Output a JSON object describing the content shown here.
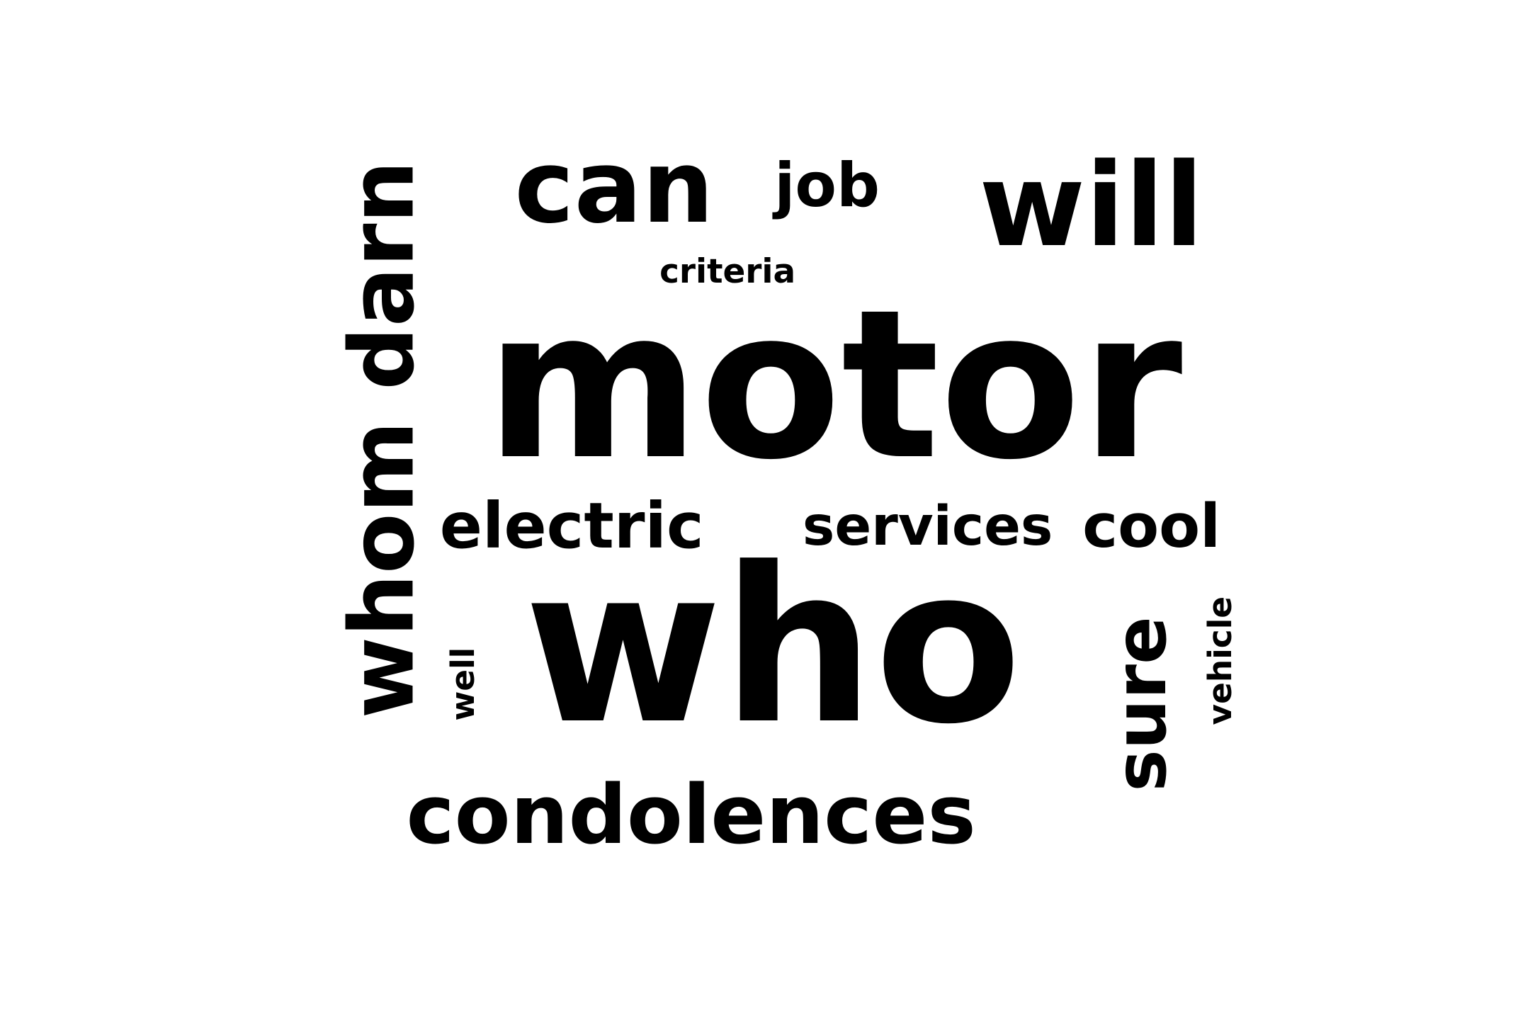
{
  "word_cloud": {
    "text_color": "#000000",
    "background_color": "#ffffff",
    "words": [
      {
        "key": "motor",
        "text": "motor"
      },
      {
        "key": "who",
        "text": "who"
      },
      {
        "key": "can",
        "text": "can"
      },
      {
        "key": "will",
        "text": "will"
      },
      {
        "key": "job",
        "text": "job"
      },
      {
        "key": "criteria",
        "text": "criteria"
      },
      {
        "key": "whom_darn",
        "text": "whom darn"
      },
      {
        "key": "electric",
        "text": "electric"
      },
      {
        "key": "services",
        "text": "services"
      },
      {
        "key": "cool",
        "text": "cool"
      },
      {
        "key": "sure",
        "text": "sure"
      },
      {
        "key": "vehicle",
        "text": "vehicle"
      },
      {
        "key": "well",
        "text": "well"
      },
      {
        "key": "condolences",
        "text": "condolences"
      }
    ]
  }
}
